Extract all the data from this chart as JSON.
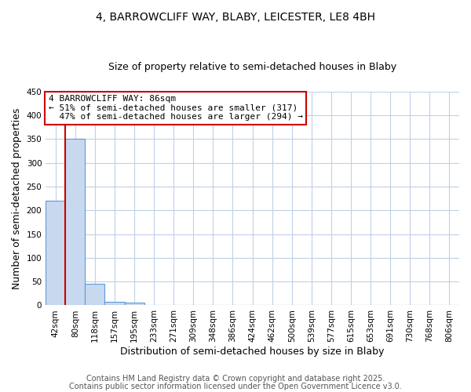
{
  "title": "4, BARROWCLIFF WAY, BLABY, LEICESTER, LE8 4BH",
  "subtitle": "Size of property relative to semi-detached houses in Blaby",
  "xlabel": "Distribution of semi-detached houses by size in Blaby",
  "ylabel": "Number of semi-detached properties",
  "bin_labels": [
    "42sqm",
    "80sqm",
    "118sqm",
    "157sqm",
    "195sqm",
    "233sqm",
    "271sqm",
    "309sqm",
    "348sqm",
    "386sqm",
    "424sqm",
    "462sqm",
    "500sqm",
    "539sqm",
    "577sqm",
    "615sqm",
    "653sqm",
    "691sqm",
    "730sqm",
    "768sqm",
    "806sqm"
  ],
  "bar_values": [
    220,
    350,
    45,
    8,
    5,
    0,
    0,
    0,
    1,
    0,
    0,
    0,
    0,
    0,
    0,
    0,
    0,
    0,
    0,
    0,
    0
  ],
  "bar_color": "#c8d9ef",
  "bar_edge_color": "#5b9bd5",
  "property_line_color": "#cc0000",
  "annotation_line1": "4 BARROWCLIFF WAY: 86sqm",
  "annotation_line2": "← 51% of semi-detached houses are smaller (317)",
  "annotation_line3": "  47% of semi-detached houses are larger (294) →",
  "annotation_box_color": "#ffffff",
  "annotation_box_edge_color": "#cc0000",
  "ylim": [
    0,
    450
  ],
  "yticks": [
    0,
    50,
    100,
    150,
    200,
    250,
    300,
    350,
    400,
    450
  ],
  "background_color": "#ffffff",
  "grid_color": "#c0d0e8",
  "footer_text1": "Contains HM Land Registry data © Crown copyright and database right 2025.",
  "footer_text2": "Contains public sector information licensed under the Open Government Licence v3.0.",
  "title_fontsize": 10,
  "subtitle_fontsize": 9,
  "axis_label_fontsize": 9,
  "tick_fontsize": 7.5,
  "annotation_fontsize": 8,
  "footer_fontsize": 7
}
